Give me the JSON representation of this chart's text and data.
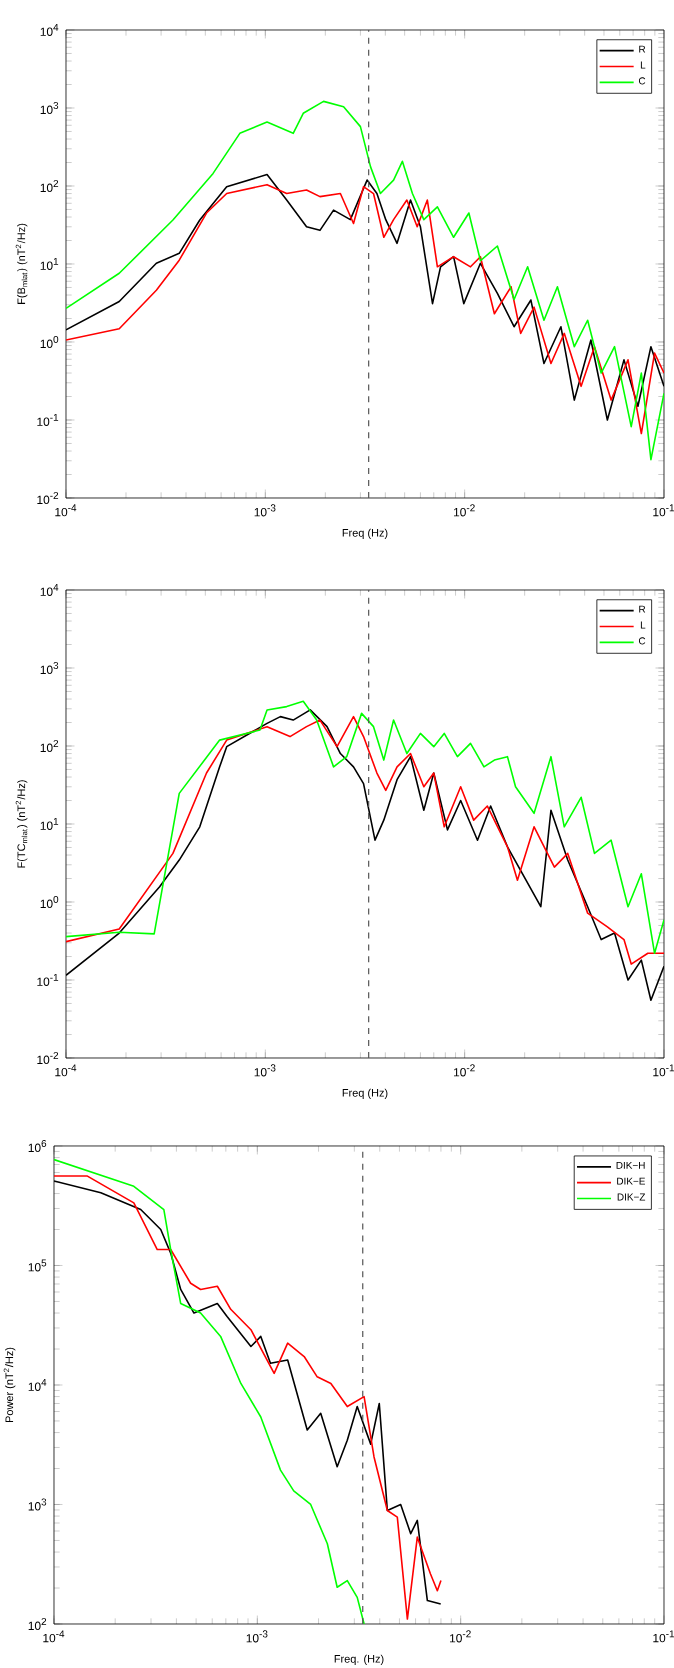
{
  "chart_data": [
    {
      "type": "line",
      "xlabel": "Freq (Hz)",
      "ylabel": "F(B$_{mlat}$) (nT$^{2}$/Hz)",
      "log": "xy",
      "legend": "top right",
      "xlim": [
        0.0001,
        0.1
      ],
      "ylim": [
        0.01,
        10000
      ],
      "xticks": [
        {
          "value": 0.0001,
          "label": "10$^{-4}$"
        },
        {
          "value": 0.001,
          "label": "10$^{-3}$"
        },
        {
          "value": 0.01,
          "label": "10$^{-2}$"
        },
        {
          "value": 0.1,
          "label": "10$^{-1}$"
        }
      ],
      "yticks": [
        {
          "value": 0.01,
          "label": "10$^{-2}$"
        },
        {
          "value": 0.1,
          "label": "10$^{-1}$"
        },
        {
          "value": 1,
          "label": "10$^{0}$"
        },
        {
          "value": 10,
          "label": "10$^{1}$"
        },
        {
          "value": 100,
          "label": "10$^{2}$"
        },
        {
          "value": 1000,
          "label": "10$^{3}$"
        },
        {
          "value": 10000,
          "label": "10$^{4}$"
        }
      ],
      "ref_lines": [
        {
          "axis": "x",
          "value": 0.0033,
          "line_style": "dashed",
          "color": "#555555"
        }
      ],
      "series": [
        {
          "name": "R",
          "color": "#000000",
          "x": [
            0.0001,
            0.000185,
            0.000284,
            0.00037,
            0.000469,
            0.00064,
            0.00102,
            0.00128,
            0.00161,
            0.00188,
            0.0022,
            0.00267,
            0.00324,
            0.00363,
            0.00402,
            0.00458,
            0.00535,
            0.006,
            0.0069,
            0.00757,
            0.0088,
            0.0099,
            0.012,
            0.0146,
            0.0177,
            0.0215,
            0.025,
            0.0304,
            0.0355,
            0.043,
            0.052,
            0.063,
            0.074,
            0.086,
            0.1
          ],
          "values": [
            1.43,
            3.3,
            10.2,
            13.7,
            36.6,
            98,
            140,
            66,
            30,
            27,
            49,
            37,
            119,
            80,
            37,
            18.4,
            66,
            30,
            3.1,
            9.2,
            12.4,
            3.1,
            10.2,
            4.2,
            1.57,
            3.45,
            0.53,
            1.57,
            0.18,
            1.06,
            0.1,
            0.59,
            0.15,
            0.87,
            0.27
          ]
        },
        {
          "name": "L",
          "color": "#ff0000",
          "x": [
            0.0001,
            0.000185,
            0.000284,
            0.00037,
            0.000507,
            0.00064,
            0.00102,
            0.00128,
            0.00161,
            0.00188,
            0.00238,
            0.00277,
            0.00311,
            0.00349,
            0.00393,
            0.0044,
            0.00513,
            0.00578,
            0.0065,
            0.0073,
            0.0088,
            0.0107,
            0.012,
            0.0141,
            0.0171,
            0.0191,
            0.0223,
            0.0271,
            0.0316,
            0.0384,
            0.0448,
            0.0543,
            0.066,
            0.077,
            0.0897,
            0.1
          ],
          "values": [
            1.06,
            1.48,
            4.6,
            11.2,
            45,
            80,
            104,
            80,
            89,
            73,
            80,
            33,
            98,
            80,
            22,
            37,
            66,
            30,
            66,
            9.2,
            12.4,
            9.2,
            12.4,
            2.3,
            5.1,
            1.29,
            2.8,
            0.53,
            1.29,
            0.27,
            0.87,
            0.18,
            0.59,
            0.067,
            0.72,
            0.4
          ]
        },
        {
          "name": "C",
          "color": "#00ff00",
          "x": [
            0.0001,
            0.000185,
            0.000344,
            0.000547,
            0.000745,
            0.00102,
            0.00138,
            0.00155,
            0.00196,
            0.00247,
            0.003,
            0.00337,
            0.00378,
            0.0044,
            0.00487,
            0.00547,
            0.00624,
            0.0073,
            0.0088,
            0.0105,
            0.012,
            0.0146,
            0.0177,
            0.0207,
            0.025,
            0.0292,
            0.0355,
            0.0414,
            0.0484,
            0.0565,
            0.0685,
            0.077,
            0.086,
            0.1
          ],
          "values": [
            2.7,
            7.6,
            36.6,
            145,
            473,
            660,
            473,
            855,
            1215,
            1040,
            577,
            177,
            80,
            119,
            207,
            80,
            37,
            54,
            22,
            45,
            11,
            17,
            3.5,
            9.2,
            1.9,
            5.1,
            0.87,
            1.9,
            0.4,
            0.87,
            0.082,
            0.4,
            0.031,
            0.22
          ]
        }
      ]
    },
    {
      "type": "line",
      "xlabel": "Freq (Hz)",
      "ylabel": "F(TC$_{mlat}$) (nT$^{2}$/Hz)",
      "log": "xy",
      "legend": "top right",
      "xlim": [
        0.0001,
        0.1
      ],
      "ylim": [
        0.01,
        10000
      ],
      "xticks": [
        {
          "value": 0.0001,
          "label": "10$^{-4}$"
        },
        {
          "value": 0.001,
          "label": "10$^{-3}$"
        },
        {
          "value": 0.01,
          "label": "10$^{-2}$"
        },
        {
          "value": 0.1,
          "label": "10$^{-1}$"
        }
      ],
      "yticks": [
        {
          "value": 0.01,
          "label": "10$^{-2}$"
        },
        {
          "value": 0.1,
          "label": "10$^{-1}$"
        },
        {
          "value": 1,
          "label": "10$^{0}$"
        },
        {
          "value": 10,
          "label": "10$^{1}$"
        },
        {
          "value": 100,
          "label": "10$^{2}$"
        },
        {
          "value": 1000,
          "label": "10$^{3}$"
        },
        {
          "value": 10000,
          "label": "10$^{4}$"
        }
      ],
      "ref_lines": [
        {
          "axis": "x",
          "value": 0.0033,
          "line_style": "dashed",
          "color": "#555555"
        }
      ],
      "series": [
        {
          "name": "R",
          "color": "#000000",
          "x": [
            0.0001,
            0.000185,
            0.000295,
            0.00037,
            0.000469,
            0.00059,
            0.00064,
            0.00102,
            0.00119,
            0.00138,
            0.00168,
            0.00204,
            0.00238,
            0.00277,
            0.00311,
            0.00355,
            0.00393,
            0.00458,
            0.00535,
            0.00624,
            0.007,
            0.0082,
            0.00955,
            0.0116,
            0.0135,
            0.0164,
            0.0241,
            0.0271,
            0.0329,
            0.0414,
            0.0484,
            0.0565,
            0.066,
            0.077,
            0.086,
            0.1
          ],
          "values": [
            0.115,
            0.4,
            1.57,
            3.45,
            9.2,
            54,
            98,
            195,
            238,
            215,
            290,
            177,
            80,
            54,
            33,
            6.2,
            11.2,
            37,
            73,
            15,
            45,
            8.4,
            20,
            6.2,
            17,
            5.1,
            0.87,
            15,
            3.45,
            0.87,
            0.33,
            0.4,
            0.1,
            0.18,
            0.055,
            0.15
          ]
        },
        {
          "name": "L",
          "color": "#ff0000",
          "x": [
            0.0001,
            0.000185,
            0.000344,
            0.000507,
            0.00064,
            0.00102,
            0.00133,
            0.00161,
            0.00188,
            0.00229,
            0.00277,
            0.00311,
            0.00363,
            0.00402,
            0.00458,
            0.00535,
            0.00624,
            0.007,
            0.0079,
            0.00955,
            0.0111,
            0.013,
            0.0164,
            0.0184,
            0.0223,
            0.0282,
            0.0329,
            0.0414,
            0.052,
            0.063,
            0.0685,
            0.083,
            0.1
          ],
          "values": [
            0.31,
            0.45,
            4.2,
            45,
            119,
            177,
            132,
            177,
            215,
            98,
            238,
            132,
            45,
            27,
            54,
            80,
            30,
            45,
            9.2,
            30,
            11.2,
            17,
            5.1,
            1.9,
            9.2,
            2.8,
            4.2,
            0.72,
            0.48,
            0.33,
            0.16,
            0.22,
            0.22
          ]
        },
        {
          "name": "C",
          "color": "#00ff00",
          "x": [
            0.0001,
            0.000185,
            0.000277,
            0.00037,
            0.00059,
            0.00094,
            0.00102,
            0.00128,
            0.00155,
            0.00181,
            0.0022,
            0.00256,
            0.00304,
            0.00349,
            0.00393,
            0.0044,
            0.00513,
            0.006,
            0.007,
            0.0079,
            0.0092,
            0.0107,
            0.0125,
            0.0141,
            0.0164,
            0.018,
            0.0223,
            0.0271,
            0.0316,
            0.0384,
            0.0448,
            0.0543,
            0.066,
            0.077,
            0.0897,
            0.1
          ],
          "values": [
            0.36,
            0.41,
            0.39,
            24.7,
            119,
            160,
            290,
            320,
            374,
            215,
            54,
            73,
            262,
            177,
            66,
            215,
            80,
            145,
            98,
            145,
            73,
            108,
            54,
            66,
            73,
            30,
            13.7,
            73,
            9.2,
            22,
            4.2,
            6.2,
            0.87,
            2.3,
            0.22,
            0.59
          ]
        }
      ]
    },
    {
      "type": "line",
      "xlabel": "Freq. (Hz)",
      "ylabel": "Power (nT$^{2}$/Hz)",
      "log": "xy",
      "legend": "top right",
      "xlim": [
        0.0001,
        0.1
      ],
      "ylim": [
        100,
        1000000
      ],
      "xticks": [
        {
          "value": 0.0001,
          "label": "10$^{-4}$"
        },
        {
          "value": 0.001,
          "label": "10$^{-3}$"
        },
        {
          "value": 0.01,
          "label": "10$^{-2}$"
        },
        {
          "value": 0.1,
          "label": "10$^{-1}$"
        }
      ],
      "yticks": [
        {
          "value": 100,
          "label": "10$^{2}$"
        },
        {
          "value": 1000,
          "label": "10$^{3}$"
        },
        {
          "value": 10000,
          "label": "10$^{4}$"
        },
        {
          "value": 100000,
          "label": "10$^{5}$"
        },
        {
          "value": 1000000,
          "label": "10$^{6}$"
        }
      ],
      "ref_lines": [
        {
          "axis": "x",
          "value": 0.0033,
          "line_style": "dashed",
          "color": "#555555"
        }
      ],
      "series": [
        {
          "name": "DIK−H",
          "color": "#000000",
          "x": [
            0.0001,
            0.00017,
            0.000267,
            0.000335,
            0.000375,
            0.00042,
            0.000488,
            0.000636,
            0.00071,
            0.00093,
            0.00104,
            0.00116,
            0.00141,
            0.00176,
            0.00205,
            0.00247,
            0.00277,
            0.0031,
            0.00361,
            0.00398,
            0.00436,
            0.00507,
            0.00568,
            0.00612,
            0.00686,
            0.00798
          ],
          "values": [
            510000,
            406000,
            294000,
            200000,
            127000,
            63000,
            40000,
            48000,
            37400,
            21000,
            25500,
            15200,
            16200,
            4200,
            5800,
            2070,
            3450,
            6600,
            3200,
            7000,
            890,
            1000,
            570,
            736,
            157,
            147
          ]
        },
        {
          "name": "DIK−E",
          "color": "#ff0000",
          "x": [
            0.0001,
            0.000146,
            0.000247,
            0.000322,
            0.000375,
            0.00047,
            0.000526,
            0.000636,
            0.00074,
            0.00093,
            0.00121,
            0.00141,
            0.0017,
            0.00197,
            0.0023,
            0.00277,
            0.00335,
            0.00375,
            0.00436,
            0.00488,
            0.00547,
            0.00612,
            0.0071,
            0.00768,
            0.008
          ],
          "values": [
            560000,
            560000,
            334000,
            136000,
            136000,
            71000,
            63000,
            67000,
            43000,
            29000,
            12500,
            22400,
            17300,
            11700,
            10300,
            6600,
            8000,
            2500,
            890,
            785,
            110,
            533,
            263,
            190,
            231
          ]
        },
        {
          "name": "DIK−Z",
          "color": "#00ff00",
          "x": [
            0.0001,
            0.000247,
            0.000347,
            0.000375,
            0.00042,
            0.000526,
            0.00066,
            0.00083,
            0.00104,
            0.0013,
            0.00151,
            0.00183,
            0.00221,
            0.00247,
            0.00277,
            0.0031,
            0.00335
          ],
          "values": [
            770000,
            460000,
            294000,
            136000,
            48000,
            40000,
            25500,
            10300,
            5400,
            1940,
            1300,
            1000,
            469,
            203,
            231,
            167,
            100
          ]
        }
      ]
    }
  ]
}
